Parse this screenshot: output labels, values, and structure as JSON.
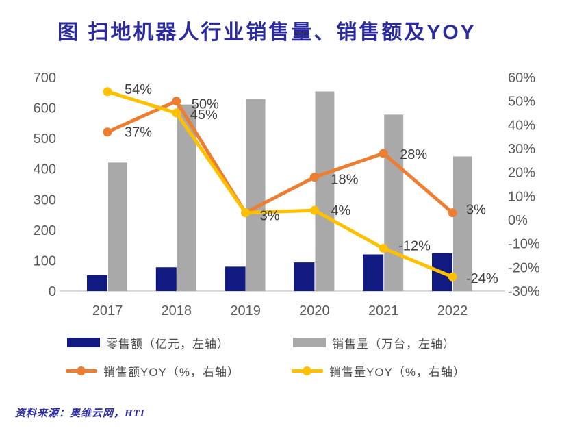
{
  "title": {
    "text": "图 扫地机器人行业销售量、销售额及YOY"
  },
  "source_note": {
    "text": "资料来源：奥维云网，HTI"
  },
  "colors": {
    "title": "#2b2b9f",
    "source": "#2b2b9f",
    "axis_text": "#595959",
    "data_label": "#3d3d3d",
    "legend_text": "#4d4d4d",
    "axis_line": "#d9d9d9",
    "bar_retail": "#101a80",
    "bar_volume": "#a9a9a9",
    "line_revenue_yoy": "#ed7d31",
    "line_volume_yoy": "#ffc000"
  },
  "chart_data": {
    "type": "bar+line",
    "categories": [
      "2017",
      "2018",
      "2019",
      "2020",
      "2021",
      "2022"
    ],
    "series": [
      {
        "name": "零售额（亿元，左轴）",
        "type": "bar",
        "axis": "left",
        "color_key": "bar_retail",
        "values": [
          52,
          78,
          80,
          94,
          120,
          124
        ]
      },
      {
        "name": "销售量（万台，左轴）",
        "type": "bar",
        "axis": "left",
        "color_key": "bar_volume",
        "values": [
          421,
          611,
          629,
          654,
          578,
          441
        ]
      },
      {
        "name": "销售额YOY（%，右轴）",
        "type": "line",
        "axis": "right",
        "color_key": "line_revenue_yoy",
        "values": [
          37,
          50,
          3,
          18,
          28,
          3
        ],
        "labels": [
          "37%",
          "50%",
          null,
          "18%",
          "28%",
          "3%"
        ],
        "label_offsets": [
          [
            25,
            0
          ],
          [
            22,
            4
          ],
          [
            0,
            0
          ],
          [
            24,
            3
          ],
          [
            24,
            1
          ],
          [
            20,
            -5
          ]
        ]
      },
      {
        "name": "销售量YOY（%，右轴）",
        "type": "line",
        "axis": "right",
        "color_key": "line_volume_yoy",
        "values": [
          54,
          45,
          3,
          4,
          -12,
          -24
        ],
        "labels": [
          "54%",
          "45%",
          "3%",
          "4%",
          "-12%",
          "-24%"
        ],
        "label_offsets": [
          [
            25,
            -4
          ],
          [
            20,
            2
          ],
          [
            21,
            4
          ],
          [
            24,
            0
          ],
          [
            22,
            -4
          ],
          [
            20,
            2
          ]
        ]
      }
    ],
    "left_axis": {
      "min": 0,
      "max": 700,
      "ticks": [
        {
          "value": 700,
          "label": "700"
        },
        {
          "value": 600,
          "label": "600"
        },
        {
          "value": 500,
          "label": "500"
        },
        {
          "value": 400,
          "label": "400"
        },
        {
          "value": 300,
          "label": "300"
        },
        {
          "value": 200,
          "label": "200"
        },
        {
          "value": 100,
          "label": "100"
        },
        {
          "value": 0,
          "label": "0"
        }
      ]
    },
    "right_axis": {
      "min": -30,
      "max": 60,
      "ticks": [
        {
          "value": 60,
          "label": "60%"
        },
        {
          "value": 50,
          "label": "50%"
        },
        {
          "value": 40,
          "label": "40%"
        },
        {
          "value": 30,
          "label": "30%"
        },
        {
          "value": 20,
          "label": "20%"
        },
        {
          "value": 10,
          "label": "10%"
        },
        {
          "value": 0,
          "label": "0%"
        },
        {
          "value": -10,
          "label": "-10%"
        },
        {
          "value": -20,
          "label": "-20%"
        },
        {
          "value": -30,
          "label": "-30%"
        }
      ]
    },
    "grid": false,
    "legend_position": "bottom"
  }
}
